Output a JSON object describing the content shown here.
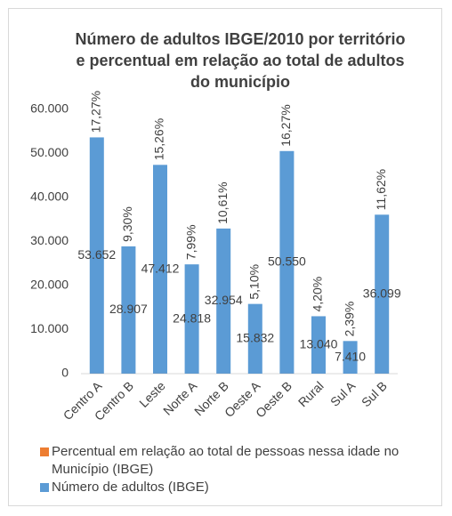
{
  "chart_data": {
    "type": "bar",
    "title": "Número de adultos IBGE/2010 por território e percentual em relação ao total de adultos do município",
    "categories": [
      "Centro A",
      "Centro B",
      "Leste",
      "Norte A",
      "Norte B",
      "Oeste A",
      "Oeste B",
      "Rural",
      "Sul A",
      "Sul B"
    ],
    "series": [
      {
        "name": "Percentual em relação ao total de pessoas nessa idade no Município (IBGE)",
        "color": "#ed7d31",
        "values": [
          17.27,
          9.3,
          15.26,
          7.99,
          10.61,
          5.1,
          16.27,
          4.2,
          2.39,
          11.62
        ],
        "value_labels": [
          "17,27%",
          "9,30%",
          "15,26%",
          "7,99%",
          "10,61%",
          "5,10%",
          "16,27%",
          "4,20%",
          "2,39%",
          "11,62%"
        ]
      },
      {
        "name": "Número de adultos (IBGE)",
        "color": "#5b9bd5",
        "values": [
          53652,
          28907,
          47412,
          24818,
          32954,
          15832,
          50550,
          13040,
          7410,
          36099
        ],
        "value_labels": [
          "53.652",
          "28.907",
          "47.412",
          "24.818",
          "32.954",
          "15.832",
          "50.550",
          "13.040",
          "7.410",
          "36.099"
        ]
      }
    ],
    "ylim": [
      0,
      60000
    ],
    "yticks": [
      {
        "value": 0,
        "label": "0"
      },
      {
        "value": 10000,
        "label": "10.000"
      },
      {
        "value": 20000,
        "label": "20.000"
      },
      {
        "value": 30000,
        "label": "30.000"
      },
      {
        "value": 40000,
        "label": "40.000"
      },
      {
        "value": 50000,
        "label": "50.000"
      },
      {
        "value": 60000,
        "label": "60.000"
      }
    ],
    "legend": "bottom"
  }
}
